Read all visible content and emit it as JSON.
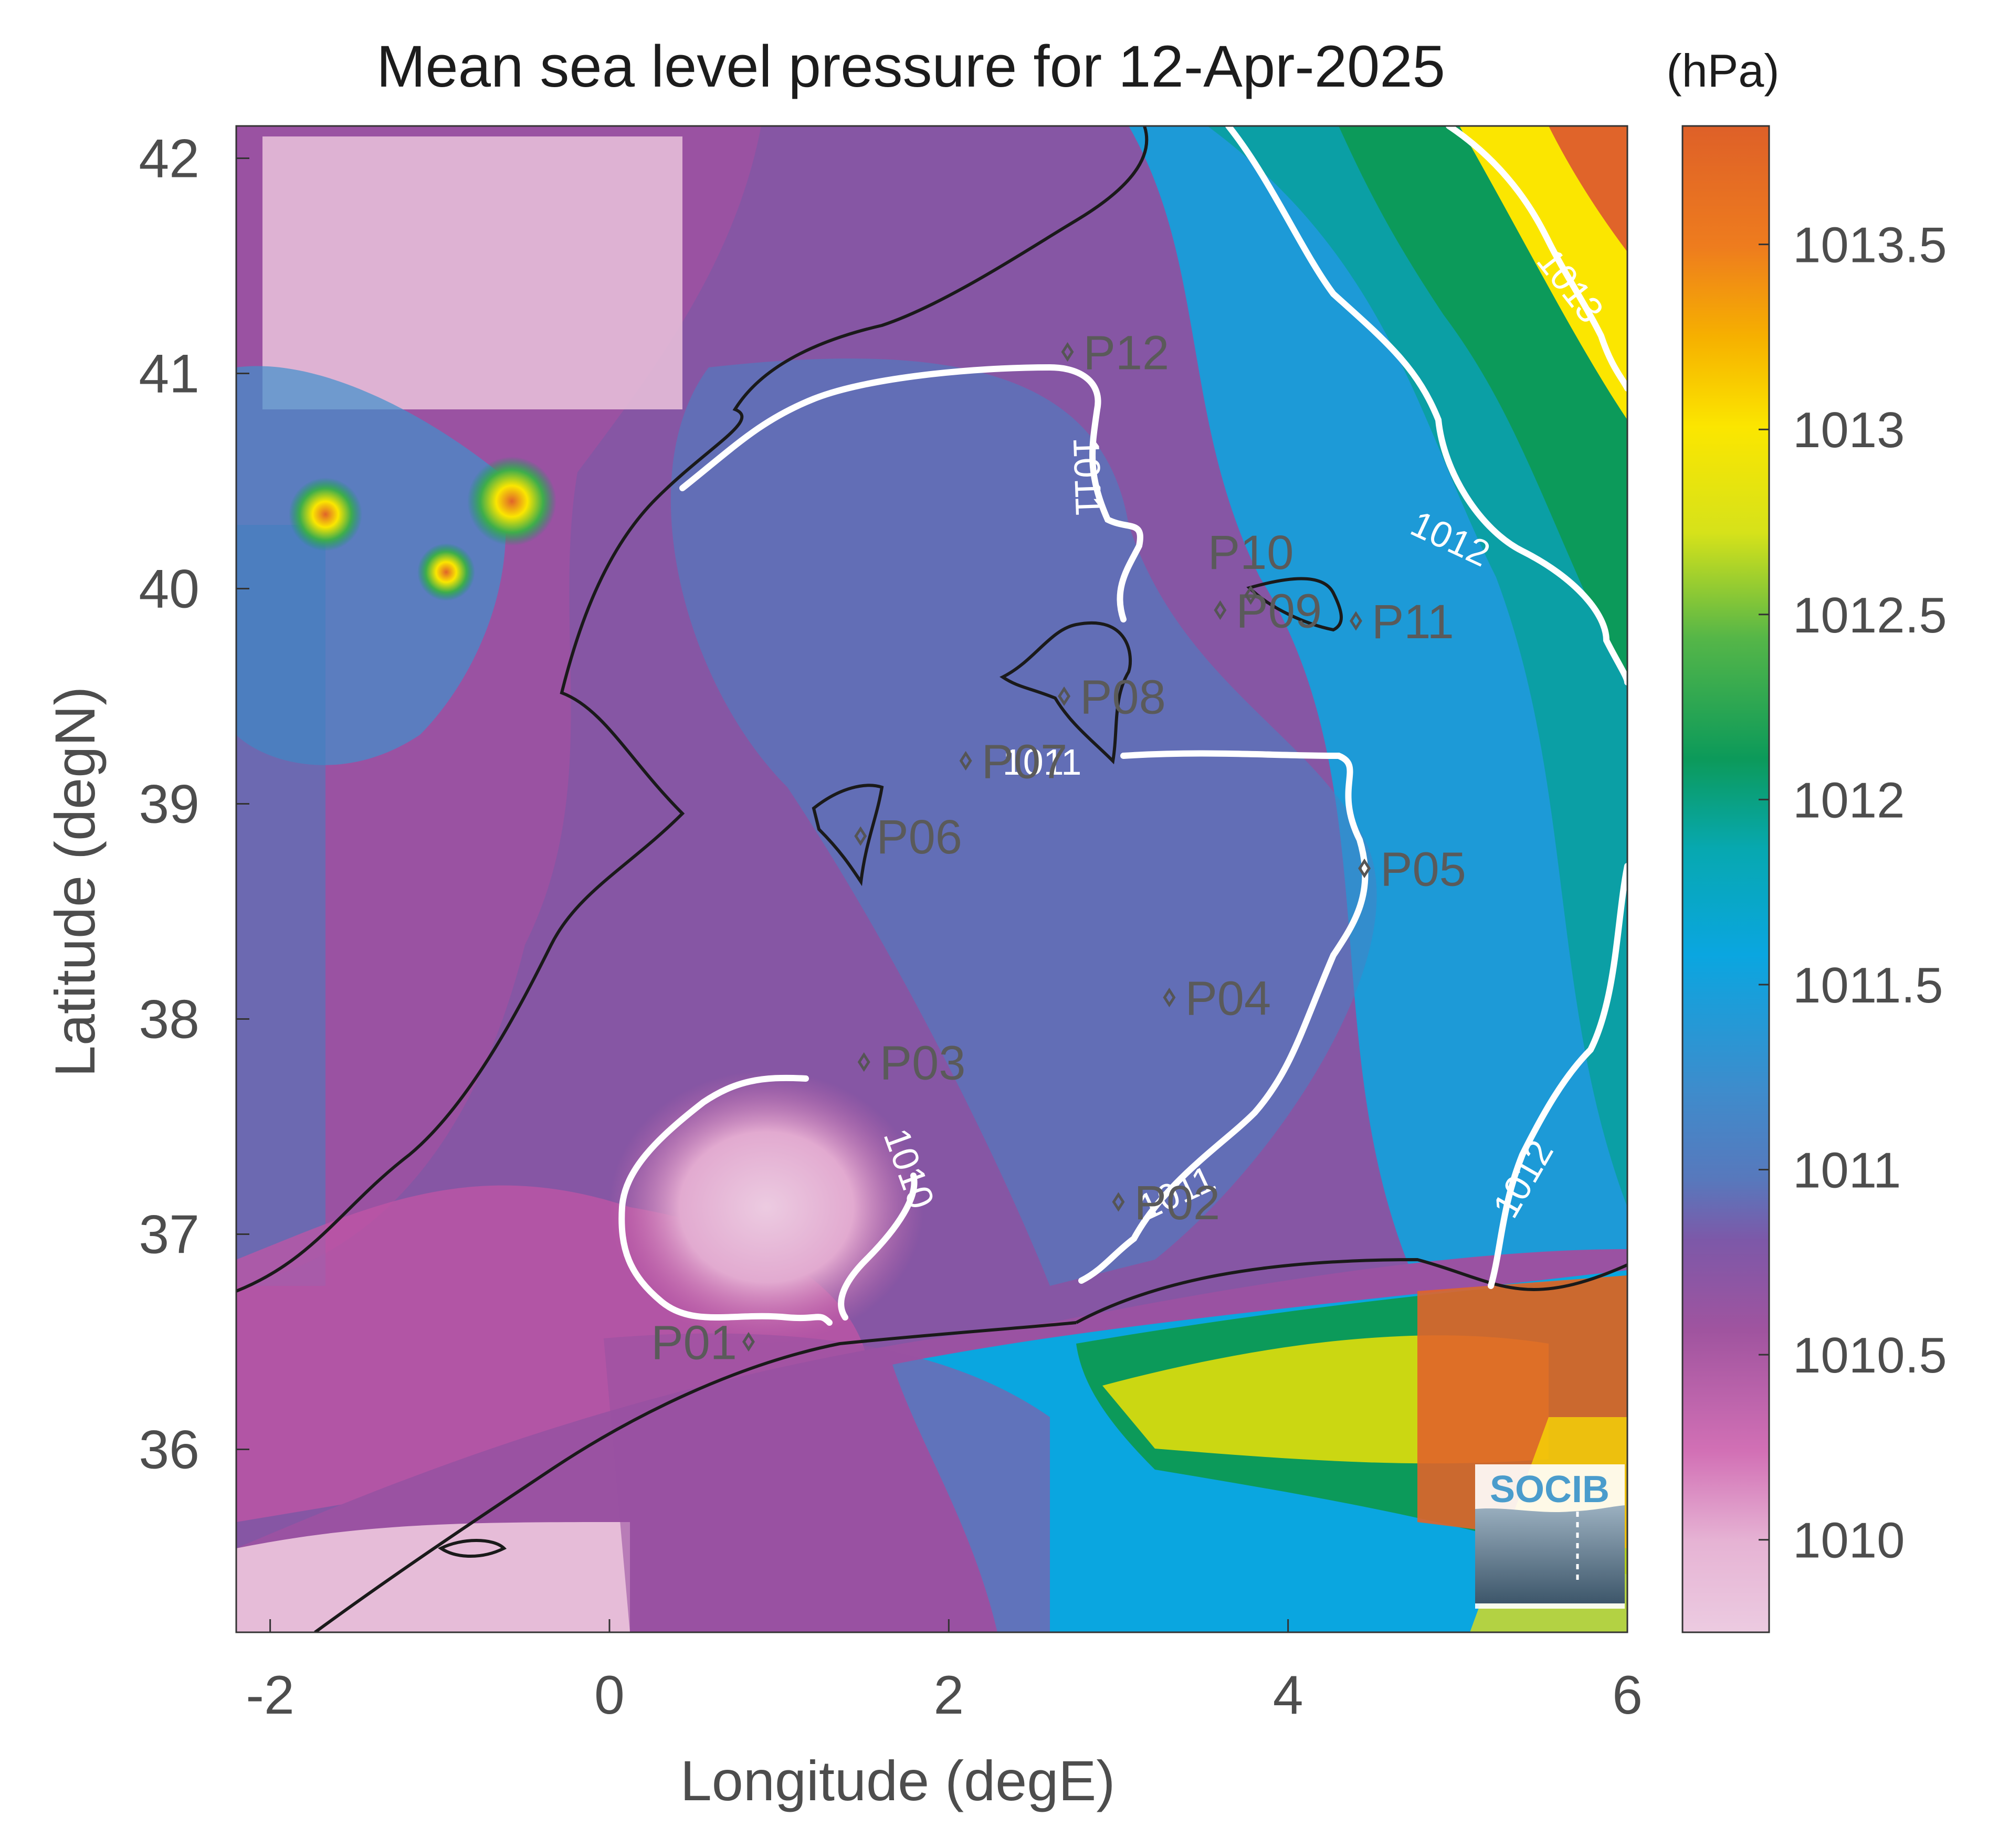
{
  "title": "Mean sea level pressure for 12-Apr-2025",
  "units_label": "(hPa)",
  "x_axis": {
    "label": "Longitude (degE)",
    "range": [
      -2.2,
      6.0
    ],
    "ticks": [
      {
        "value": -2,
        "label": "-2"
      },
      {
        "value": 0,
        "label": "0"
      },
      {
        "value": 2,
        "label": "2"
      },
      {
        "value": 4,
        "label": "4"
      },
      {
        "value": 6,
        "label": "6"
      }
    ]
  },
  "y_axis": {
    "label": "Latitude (degN)",
    "range": [
      35.15,
      42.15
    ],
    "ticks": [
      {
        "value": 36,
        "label": "36"
      },
      {
        "value": 37,
        "label": "37"
      },
      {
        "value": 38,
        "label": "38"
      },
      {
        "value": 39,
        "label": "39"
      },
      {
        "value": 40,
        "label": "40"
      },
      {
        "value": 41,
        "label": "41"
      },
      {
        "value": 42,
        "label": "42"
      }
    ]
  },
  "colorbar": {
    "range": [
      1009.75,
      1013.82
    ],
    "ticks": [
      {
        "value": 1010,
        "label": "1010"
      },
      {
        "value": 1010.5,
        "label": "1010.5"
      },
      {
        "value": 1011,
        "label": "1011"
      },
      {
        "value": 1011.5,
        "label": "1011.5"
      },
      {
        "value": 1012,
        "label": "1012"
      },
      {
        "value": 1012.5,
        "label": "1012.5"
      },
      {
        "value": 1013,
        "label": "1013"
      },
      {
        "value": 1013.5,
        "label": "1013.5"
      }
    ],
    "colors": [
      "#e6bcd8",
      "#c85aa8",
      "#8850a0",
      "#4684c4",
      "#0aa6e0",
      "#0c9a5a",
      "#fbe600",
      "#e0642a"
    ]
  },
  "stations": [
    {
      "name": "P01",
      "lon": 0.82,
      "lat": 36.5
    },
    {
      "name": "P02",
      "lon": 3.0,
      "lat": 37.15
    },
    {
      "name": "P03",
      "lon": 1.5,
      "lat": 37.8
    },
    {
      "name": "P04",
      "lon": 3.3,
      "lat": 38.1
    },
    {
      "name": "P05",
      "lon": 4.45,
      "lat": 38.7
    },
    {
      "name": "P06",
      "lon": 1.48,
      "lat": 38.85
    },
    {
      "name": "P07",
      "lon": 2.1,
      "lat": 39.2
    },
    {
      "name": "P08",
      "lon": 2.68,
      "lat": 39.5
    },
    {
      "name": "P09",
      "lon": 3.6,
      "lat": 39.9
    },
    {
      "name": "P10",
      "lon": 3.78,
      "lat": 39.97
    },
    {
      "name": "P11",
      "lon": 4.4,
      "lat": 39.85
    },
    {
      "name": "P12",
      "lon": 2.7,
      "lat": 41.1
    }
  ],
  "contour_labels": [
    {
      "text": "1010",
      "lon": 1.75,
      "lat": 37.3,
      "rotate": 70
    },
    {
      "text": "1011",
      "lon": 2.8,
      "lat": 40.52,
      "rotate": 88
    },
    {
      "text": "1011",
      "lon": 2.55,
      "lat": 39.18,
      "rotate": 0
    },
    {
      "text": "1011",
      "lon": 3.35,
      "lat": 37.18,
      "rotate": -25
    },
    {
      "text": "1012",
      "lon": 4.95,
      "lat": 40.22,
      "rotate": 25
    },
    {
      "text": "1012",
      "lon": 5.4,
      "lat": 37.25,
      "rotate": -60
    },
    {
      "text": "1013",
      "lon": 5.65,
      "lat": 41.4,
      "rotate": 52
    }
  ],
  "logo": {
    "text": "SOCIB"
  },
  "icon": "socib-logo"
}
